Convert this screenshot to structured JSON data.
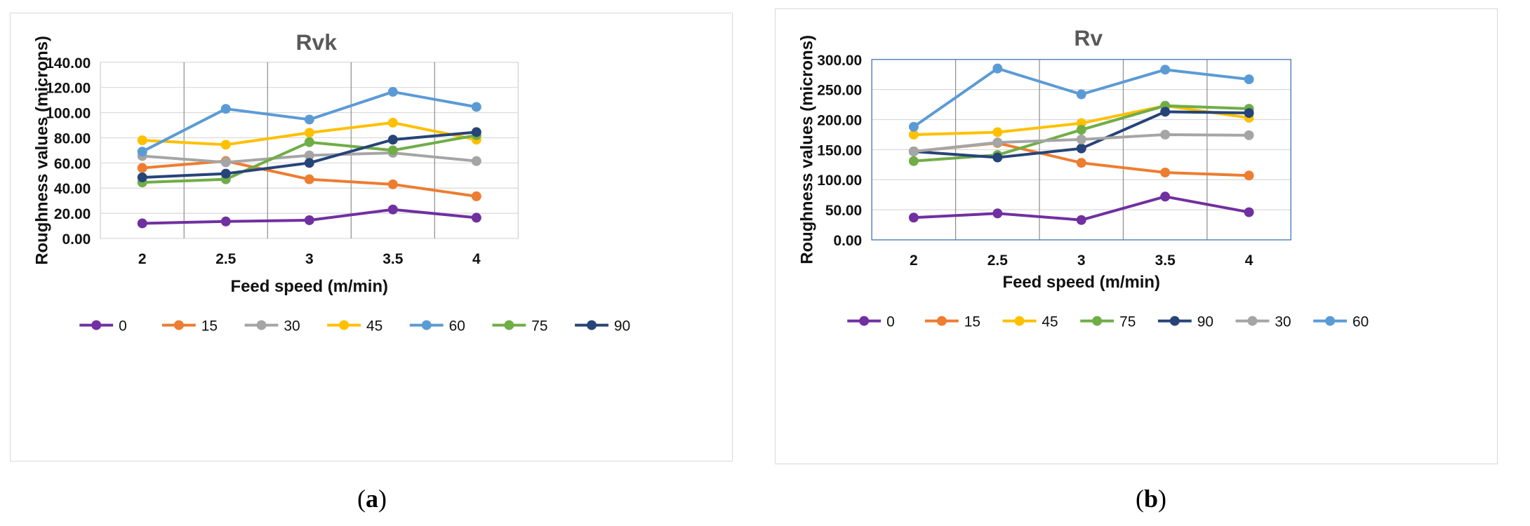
{
  "chart_data": [
    {
      "type": "line",
      "title": "Rvk",
      "xlabel": "Feed speed (m/min)",
      "ylabel": "Roughness values (microns)",
      "x": [
        "2",
        "2.5",
        "3",
        "3.5",
        "4"
      ],
      "ylim": [
        0,
        140
      ],
      "yticks": [
        "0.00",
        "20.00",
        "40.00",
        "60.00",
        "80.00",
        "100.00",
        "120.00",
        "140.00"
      ],
      "legend_position": "bottom",
      "series": [
        {
          "name": "0",
          "color": "#7030a0",
          "values": [
            12,
            13.5,
            14.5,
            23,
            16.5
          ]
        },
        {
          "name": "15",
          "color": "#ed7d31",
          "values": [
            56,
            61.5,
            47,
            43,
            33.5
          ]
        },
        {
          "name": "30",
          "color": "#a5a5a5",
          "values": [
            65.5,
            60.5,
            66,
            68,
            61.5
          ]
        },
        {
          "name": "45",
          "color": "#ffc000",
          "values": [
            78,
            74.5,
            84,
            92,
            78.5
          ]
        },
        {
          "name": "60",
          "color": "#5b9bd5",
          "values": [
            69,
            103,
            94.5,
            116.5,
            104.5
          ]
        },
        {
          "name": "75",
          "color": "#70ad47",
          "values": [
            44.5,
            47,
            76.5,
            70,
            82
          ]
        },
        {
          "name": "90",
          "color": "#264478",
          "values": [
            48.5,
            51.5,
            60,
            78.5,
            84.5
          ]
        }
      ]
    },
    {
      "type": "line",
      "title": "Rv",
      "xlabel": "Feed speed (m/min)",
      "ylabel": "Roughness values (microns)",
      "x": [
        "2",
        "2.5",
        "3",
        "3.5",
        "4"
      ],
      "ylim": [
        0,
        300
      ],
      "yticks": [
        "0.00",
        "50.00",
        "100.00",
        "150.00",
        "200.00",
        "250.00",
        "300.00"
      ],
      "legend_position": "bottom",
      "series": [
        {
          "name": "0",
          "color": "#7030a0",
          "values": [
            37,
            44,
            33,
            72,
            46
          ]
        },
        {
          "name": "15",
          "color": "#ed7d31",
          "values": [
            147,
            161,
            128,
            112,
            107
          ]
        },
        {
          "name": "45",
          "color": "#ffc000",
          "values": [
            175,
            179,
            194,
            223,
            203
          ]
        },
        {
          "name": "75",
          "color": "#70ad47",
          "values": [
            131,
            141,
            183,
            223,
            218
          ]
        },
        {
          "name": "90",
          "color": "#264478",
          "values": [
            147,
            137,
            152,
            213,
            211
          ]
        },
        {
          "name": "30",
          "color": "#a5a5a5",
          "values": [
            147,
            162,
            167,
            175,
            174
          ]
        },
        {
          "name": "60",
          "color": "#5b9bd5",
          "values": [
            188,
            285,
            242,
            283,
            267
          ]
        }
      ]
    }
  ],
  "captions": {
    "a": "a",
    "b": "b"
  }
}
